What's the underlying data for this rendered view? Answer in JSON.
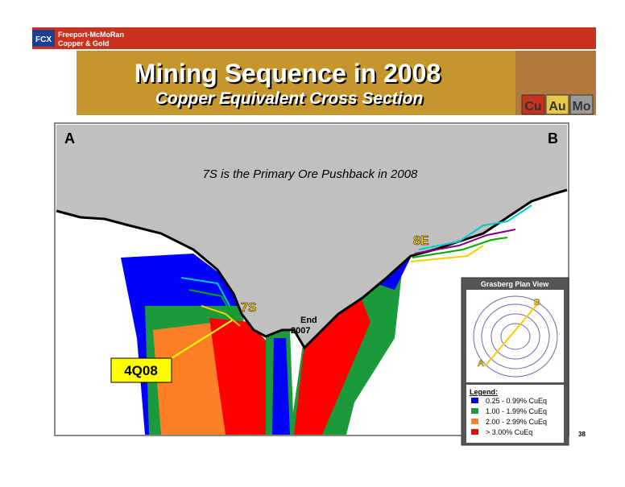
{
  "header": {
    "company_line1": "Freeport-McMoRan",
    "company_line2": "Copper & Gold",
    "title": "Mining Sequence in 2008",
    "subtitle": "Copper Equivalent Cross Section",
    "metals": [
      "Cu",
      "Au",
      "Mo"
    ]
  },
  "section": {
    "left_label": "A",
    "right_label": "B",
    "headline": "7S is the Primary Ore Pushback in 2008",
    "label_8e": "8E",
    "label_7s": "7S",
    "end_label_1": "End",
    "end_label_2": "2007",
    "callout": "4Q08"
  },
  "inset": {
    "title": "Grasberg Plan View",
    "point_a": "A",
    "point_b": "B",
    "legend_title": "Legend:",
    "legend": [
      {
        "label": "0.25 - 0.99%  CuEq",
        "color": "#0000ff"
      },
      {
        "label": "1.00 - 1.99%  CuEq",
        "color": "#1a9a3a"
      },
      {
        "label": "2.00 - 2.99%  CuEq",
        "color": "#ff7f27"
      },
      {
        "label": "> 3.00%  CuEq",
        "color": "#ff0000"
      }
    ]
  },
  "page_number": "38"
}
